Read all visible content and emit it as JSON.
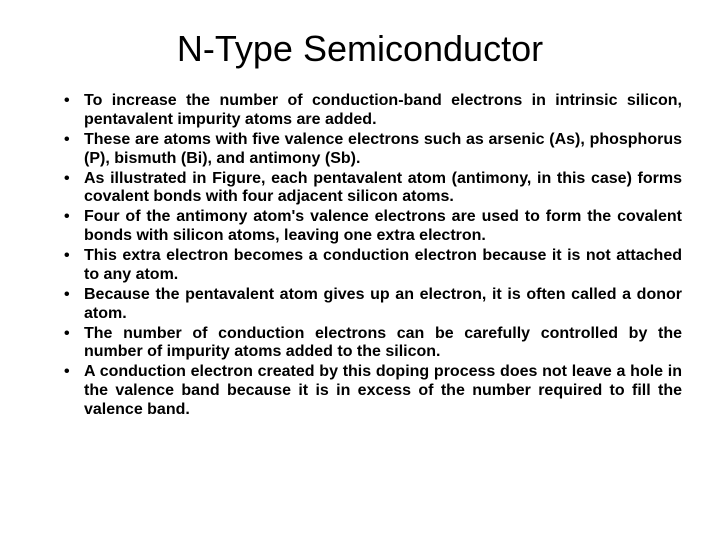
{
  "title": "N-Type Semiconductor",
  "title_fontsize": 36,
  "title_color": "#000000",
  "background_color": "#ffffff",
  "bullet_fontsize": 16,
  "bullet_fontweight": 700,
  "bullet_color": "#000000",
  "bullet_align": "justify",
  "bullets": [
    "To increase the number of conduction-band electrons in intrinsic silicon, pentavalent impurity atoms are added.",
    "These are atoms with five valence electrons such as arsenic (As), phosphorus (P), bismuth (Bi), and antimony (Sb).",
    "As illustrated in Figure, each pentavalent atom (antimony, in this case) forms covalent bonds with four adjacent silicon atoms.",
    "Four of the antimony atom's valence electrons are used to form the covalent bonds with silicon atoms, leaving one extra electron.",
    "This extra electron becomes a conduction electron because it is not attached to any atom.",
    "Because the pentavalent atom gives up an electron, it is often called a donor atom.",
    "The number of conduction electrons can be carefully controlled by the number of impurity atoms added to the silicon.",
    "A conduction electron created by this doping process does not leave a hole in the valence band because it is in excess of the number required to fill the valence band."
  ]
}
